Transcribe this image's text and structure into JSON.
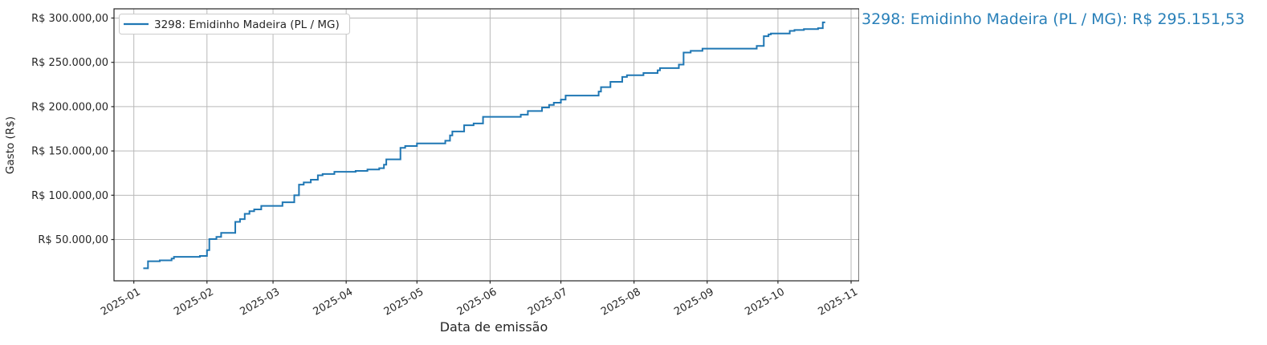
{
  "page": {
    "background": "#ffffff"
  },
  "annotation": {
    "text": "3298: Emidinho Madeira (PL / MG): R$ 295.151,53",
    "color": "#2980b9"
  },
  "chart_data": {
    "type": "line",
    "line_style": "step-post",
    "title": "",
    "xlabel": "Data de emissão",
    "ylabel": "Gasto (R$)",
    "grid": true,
    "line_color": "#1f77b4",
    "legend_position": "upper-left",
    "x_axis_range": [
      "2025-01",
      "2025-11"
    ],
    "ylim": [
      3400,
      310400
    ],
    "x_ticks": [
      {
        "label": "2025-01",
        "day": 0
      },
      {
        "label": "2025-02",
        "day": 31
      },
      {
        "label": "2025-03",
        "day": 59
      },
      {
        "label": "2025-04",
        "day": 90
      },
      {
        "label": "2025-05",
        "day": 120
      },
      {
        "label": "2025-06",
        "day": 151
      },
      {
        "label": "2025-07",
        "day": 181
      },
      {
        "label": "2025-08",
        "day": 212
      },
      {
        "label": "2025-09",
        "day": 243
      },
      {
        "label": "2025-10",
        "day": 273
      },
      {
        "label": "2025-11",
        "day": 304
      }
    ],
    "y_ticks": [
      {
        "label": "R$ 50.000,00",
        "value": 50000
      },
      {
        "label": "R$ 100.000,00",
        "value": 100000
      },
      {
        "label": "R$ 150.000,00",
        "value": 150000
      },
      {
        "label": "R$ 200.000,00",
        "value": 200000
      },
      {
        "label": "R$ 250.000,00",
        "value": 250000
      },
      {
        "label": "R$ 300.000,00",
        "value": 300000
      }
    ],
    "series": [
      {
        "name": "3298: Emidinho Madeira (PL / MG)",
        "final_value": 295151.53,
        "final_value_label": "R$ 295.151,53",
        "points": [
          {
            "date": "2025-01-05",
            "value": 17500
          },
          {
            "date": "2025-01-07",
            "value": 25500
          },
          {
            "date": "2025-01-12",
            "value": 26500
          },
          {
            "date": "2025-01-17",
            "value": 28500
          },
          {
            "date": "2025-01-18",
            "value": 30500
          },
          {
            "date": "2025-01-29",
            "value": 31500
          },
          {
            "date": "2025-02-01",
            "value": 38000
          },
          {
            "date": "2025-02-02",
            "value": 50500
          },
          {
            "date": "2025-02-05",
            "value": 53000
          },
          {
            "date": "2025-02-07",
            "value": 57500
          },
          {
            "date": "2025-02-13",
            "value": 70000
          },
          {
            "date": "2025-02-15",
            "value": 73000
          },
          {
            "date": "2025-02-17",
            "value": 79000
          },
          {
            "date": "2025-02-19",
            "value": 82000
          },
          {
            "date": "2025-02-21",
            "value": 84000
          },
          {
            "date": "2025-02-24",
            "value": 88000
          },
          {
            "date": "2025-03-05",
            "value": 92000
          },
          {
            "date": "2025-03-10",
            "value": 100000
          },
          {
            "date": "2025-03-12",
            "value": 112000
          },
          {
            "date": "2025-03-14",
            "value": 114500
          },
          {
            "date": "2025-03-17",
            "value": 117500
          },
          {
            "date": "2025-03-20",
            "value": 122500
          },
          {
            "date": "2025-03-22",
            "value": 124000
          },
          {
            "date": "2025-03-27",
            "value": 126500
          },
          {
            "date": "2025-04-05",
            "value": 127500
          },
          {
            "date": "2025-04-10",
            "value": 129000
          },
          {
            "date": "2025-04-15",
            "value": 130500
          },
          {
            "date": "2025-04-17",
            "value": 134500
          },
          {
            "date": "2025-04-18",
            "value": 140500
          },
          {
            "date": "2025-04-24",
            "value": 153500
          },
          {
            "date": "2025-04-26",
            "value": 155500
          },
          {
            "date": "2025-05-01",
            "value": 158500
          },
          {
            "date": "2025-05-13",
            "value": 161500
          },
          {
            "date": "2025-05-15",
            "value": 167500
          },
          {
            "date": "2025-05-16",
            "value": 172000
          },
          {
            "date": "2025-05-21",
            "value": 179000
          },
          {
            "date": "2025-05-25",
            "value": 181000
          },
          {
            "date": "2025-05-29",
            "value": 188500
          },
          {
            "date": "2025-06-14",
            "value": 191000
          },
          {
            "date": "2025-06-17",
            "value": 195000
          },
          {
            "date": "2025-06-23",
            "value": 199000
          },
          {
            "date": "2025-06-26",
            "value": 202000
          },
          {
            "date": "2025-06-28",
            "value": 204500
          },
          {
            "date": "2025-07-01",
            "value": 208000
          },
          {
            "date": "2025-07-03",
            "value": 212500
          },
          {
            "date": "2025-07-17",
            "value": 217000
          },
          {
            "date": "2025-07-18",
            "value": 222000
          },
          {
            "date": "2025-07-22",
            "value": 228000
          },
          {
            "date": "2025-07-27",
            "value": 233500
          },
          {
            "date": "2025-07-29",
            "value": 235500
          },
          {
            "date": "2025-08-05",
            "value": 238000
          },
          {
            "date": "2025-08-11",
            "value": 241000
          },
          {
            "date": "2025-08-12",
            "value": 243500
          },
          {
            "date": "2025-08-20",
            "value": 247500
          },
          {
            "date": "2025-08-22",
            "value": 261000
          },
          {
            "date": "2025-08-25",
            "value": 263000
          },
          {
            "date": "2025-08-30",
            "value": 265500
          },
          {
            "date": "2025-09-22",
            "value": 268500
          },
          {
            "date": "2025-09-25",
            "value": 279500
          },
          {
            "date": "2025-09-27",
            "value": 281500
          },
          {
            "date": "2025-09-28",
            "value": 282500
          },
          {
            "date": "2025-10-06",
            "value": 285500
          },
          {
            "date": "2025-10-08",
            "value": 286500
          },
          {
            "date": "2025-10-12",
            "value": 287500
          },
          {
            "date": "2025-10-18",
            "value": 288500
          },
          {
            "date": "2025-10-20",
            "value": 295151.53
          }
        ]
      }
    ]
  }
}
